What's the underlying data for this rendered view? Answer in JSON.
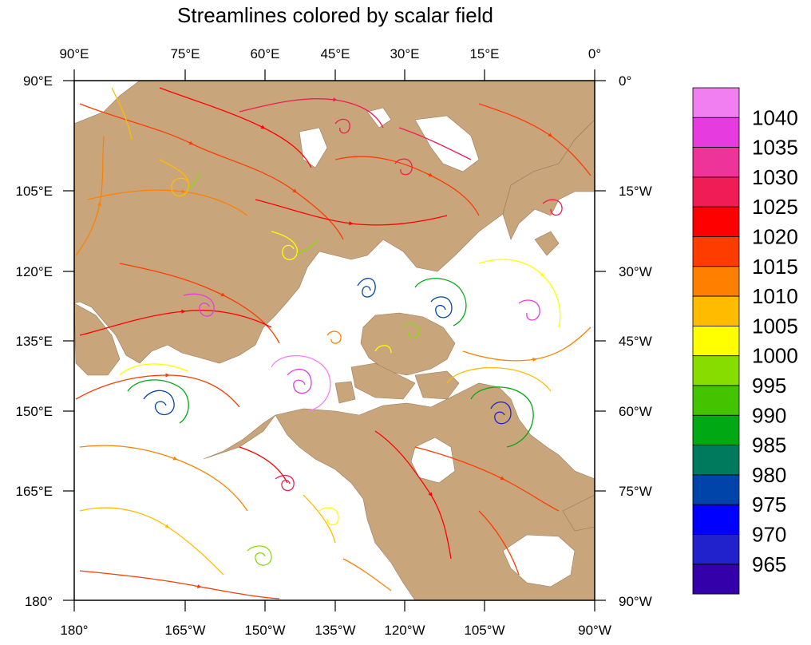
{
  "title": "Streamlines colored by scalar field",
  "axes": {
    "top": [
      "90°E",
      "75°E",
      "60°E",
      "45°E",
      "30°E",
      "15°E",
      "0°"
    ],
    "bottom": [
      "180°",
      "165°W",
      "150°W",
      "135°W",
      "120°W",
      "105°W",
      "90°W"
    ],
    "left": [
      "90°E",
      "105°E",
      "120°E",
      "135°E",
      "150°E",
      "165°E",
      "180°"
    ],
    "right": [
      "0°",
      "15°W",
      "30°W",
      "45°W",
      "60°W",
      "75°W",
      "90°W"
    ]
  },
  "colorbar": {
    "labels": [
      "1040",
      "1035",
      "1030",
      "1025",
      "1020",
      "1015",
      "1010",
      "1005",
      "1000",
      "995",
      "990",
      "985",
      "980",
      "975",
      "970",
      "965"
    ],
    "colors": [
      "#f27ff2",
      "#e63cdf",
      "#ee3399",
      "#f01c55",
      "#ff0000",
      "#ff3c00",
      "#ff8000",
      "#ffbb00",
      "#ffff00",
      "#88dd00",
      "#44c400",
      "#00a814",
      "#007a5c",
      "#0044aa",
      "#0000ff",
      "#2222cc",
      "#3300aa"
    ]
  },
  "colors": {
    "land": "#c9a57c",
    "ocean": "#ffffff"
  }
}
